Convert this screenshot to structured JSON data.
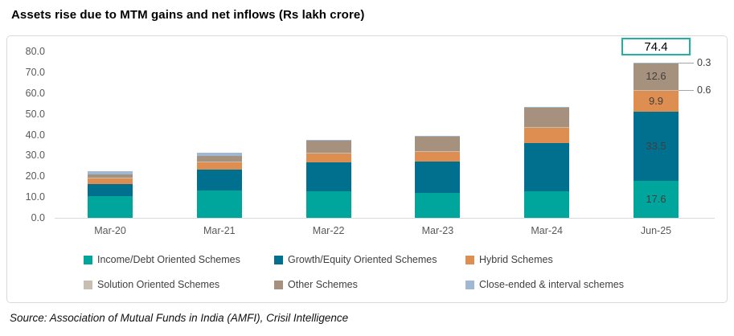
{
  "title": "Assets rise due to MTM gains and net inflows (Rs lakh crore)",
  "source": "Source: Association of Mutual Funds in India (AMFI), Crisil Intelligence",
  "colors": {
    "axis_text": "#595959",
    "axis_line": "#d9d9d9",
    "bar_value_label": "#3f3f3f",
    "total_box_border": "#1fb0a6",
    "callout_line": "#a6a6a6"
  },
  "chart_data": {
    "type": "bar",
    "stacked": true,
    "grid": false,
    "legend_position": "bottom",
    "title": "Assets rise due to MTM gains and net inflows (Rs lakh crore)",
    "xlabel": "",
    "ylabel": "",
    "ylim": [
      0,
      80
    ],
    "ytick_step": 10,
    "ytick_labels": [
      "80.0",
      "70.0",
      "60.0",
      "50.0",
      "40.0",
      "30.0",
      "20.0",
      "10.0",
      "0.0"
    ],
    "categories": [
      "Mar-20",
      "Mar-21",
      "Mar-22",
      "Mar-23",
      "Mar-24",
      "Jun-25"
    ],
    "series": [
      {
        "name": "Income/Debt Oriented Schemes",
        "color": "#00a69c",
        "values": [
          10.3,
          13.3,
          12.9,
          11.8,
          12.6,
          17.6
        ]
      },
      {
        "name": "Growth/Equity Oriented Schemes",
        "color": "#01708f",
        "values": [
          5.8,
          9.8,
          13.8,
          15.2,
          23.5,
          33.5
        ]
      },
      {
        "name": "Hybrid Schemes",
        "color": "#df8e52",
        "values": [
          2.9,
          3.5,
          4.3,
          4.7,
          7.2,
          9.9
        ]
      },
      {
        "name": "Solution Oriented Schemes",
        "color": "#c9bfb1",
        "values": [
          0.2,
          0.3,
          0.3,
          0.3,
          0.4,
          0.6
        ]
      },
      {
        "name": "Other Schemes",
        "color": "#a5917d",
        "values": [
          1.7,
          3.0,
          5.7,
          7.0,
          9.4,
          12.6
        ]
      },
      {
        "name": "Close-ended & interval schemes",
        "color": "#9fb9d4",
        "values": [
          1.4,
          1.5,
          0.6,
          0.4,
          0.3,
          0.3
        ]
      }
    ],
    "annotations": {
      "total_label": {
        "category": "Jun-25",
        "text": "74.4"
      },
      "segment_labels": {
        "category": "Jun-25",
        "values": {
          "Income/Debt Oriented Schemes": "17.6",
          "Growth/Equity Oriented Schemes": "33.5",
          "Hybrid Schemes": "9.9",
          "Other Schemes": "12.6"
        }
      },
      "callouts": [
        {
          "text": "0.3",
          "series": "Close-ended & interval schemes"
        },
        {
          "text": "0.6",
          "series": "Solution Oriented Schemes"
        }
      ]
    }
  }
}
